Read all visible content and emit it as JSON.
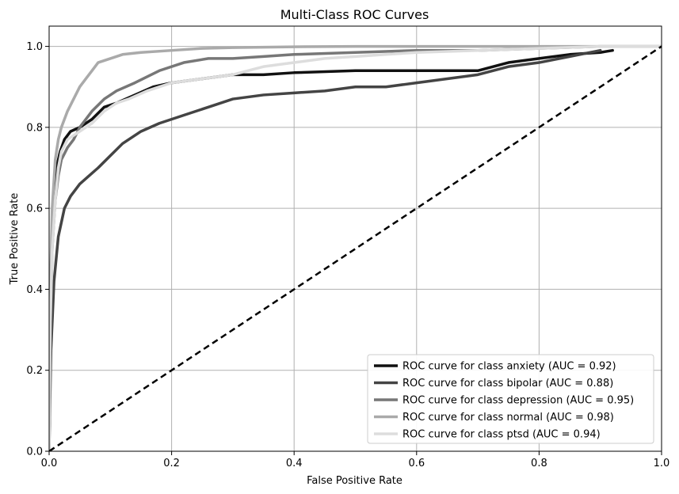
{
  "chart_data": {
    "type": "line",
    "title": "Multi-Class ROC Curves",
    "xlabel": "False Positive Rate",
    "ylabel": "True Positive Rate",
    "xlim": [
      0.0,
      1.0
    ],
    "ylim": [
      0.0,
      1.05
    ],
    "xticks": [
      "0.0",
      "0.2",
      "0.4",
      "0.6",
      "0.8",
      "1.0"
    ],
    "yticks": [
      "0.0",
      "0.2",
      "0.4",
      "0.6",
      "0.8",
      "1.0"
    ],
    "grid": true,
    "legend_position": "lower-right",
    "reference_line": {
      "label": "",
      "x": [
        0.0,
        1.0
      ],
      "y": [
        0.0,
        1.0
      ],
      "color": "#000000",
      "style": "dashed"
    },
    "series": [
      {
        "name": "ROC curve for class anxiety (AUC = 0.92)",
        "color": "#111111",
        "x": [
          0.0,
          0.002,
          0.005,
          0.008,
          0.012,
          0.018,
          0.025,
          0.035,
          0.05,
          0.07,
          0.09,
          0.11,
          0.14,
          0.17,
          0.2,
          0.25,
          0.3,
          0.35,
          0.4,
          0.5,
          0.6,
          0.7,
          0.75,
          0.8,
          0.85,
          0.9,
          0.92
        ],
        "y": [
          0.0,
          0.35,
          0.52,
          0.62,
          0.7,
          0.74,
          0.77,
          0.79,
          0.8,
          0.82,
          0.85,
          0.86,
          0.88,
          0.9,
          0.91,
          0.92,
          0.93,
          0.93,
          0.935,
          0.94,
          0.94,
          0.94,
          0.96,
          0.97,
          0.98,
          0.985,
          0.99
        ]
      },
      {
        "name": "ROC curve for class bipolar (AUC = 0.88)",
        "color": "#444444",
        "x": [
          0.0,
          0.003,
          0.008,
          0.015,
          0.025,
          0.035,
          0.05,
          0.065,
          0.08,
          0.1,
          0.12,
          0.15,
          0.18,
          0.22,
          0.26,
          0.3,
          0.35,
          0.4,
          0.45,
          0.5,
          0.55,
          0.6,
          0.65,
          0.7,
          0.75,
          0.8,
          0.85,
          0.9
        ],
        "y": [
          0.0,
          0.25,
          0.42,
          0.53,
          0.6,
          0.63,
          0.66,
          0.68,
          0.7,
          0.73,
          0.76,
          0.79,
          0.81,
          0.83,
          0.85,
          0.87,
          0.88,
          0.885,
          0.89,
          0.9,
          0.9,
          0.91,
          0.92,
          0.93,
          0.95,
          0.96,
          0.975,
          0.99
        ]
      },
      {
        "name": "ROC curve for class depression (AUC = 0.95)",
        "color": "#777777",
        "x": [
          0.0,
          0.002,
          0.005,
          0.01,
          0.015,
          0.02,
          0.03,
          0.04,
          0.05,
          0.07,
          0.09,
          0.11,
          0.14,
          0.18,
          0.22,
          0.26,
          0.3,
          0.35,
          0.4,
          0.5,
          0.6,
          0.7,
          0.8,
          0.9,
          1.0
        ],
        "y": [
          0.0,
          0.3,
          0.5,
          0.62,
          0.68,
          0.72,
          0.75,
          0.77,
          0.8,
          0.84,
          0.87,
          0.89,
          0.91,
          0.94,
          0.96,
          0.97,
          0.97,
          0.975,
          0.98,
          0.985,
          0.99,
          0.99,
          0.995,
          1.0,
          1.0
        ]
      },
      {
        "name": "ROC curve for class normal (AUC = 0.98)",
        "color": "#aaaaaa",
        "x": [
          0.0,
          0.002,
          0.005,
          0.01,
          0.015,
          0.02,
          0.03,
          0.04,
          0.05,
          0.06,
          0.07,
          0.08,
          0.1,
          0.12,
          0.15,
          0.2,
          0.25,
          0.3,
          0.4,
          0.5,
          0.6,
          0.8,
          1.0
        ],
        "y": [
          0.0,
          0.4,
          0.6,
          0.72,
          0.77,
          0.8,
          0.84,
          0.87,
          0.9,
          0.92,
          0.94,
          0.96,
          0.97,
          0.98,
          0.985,
          0.99,
          0.995,
          0.997,
          0.999,
          1.0,
          1.0,
          1.0,
          1.0
        ]
      },
      {
        "name": "ROC curve for class ptsd (AUC = 0.94)",
        "color": "#dddddd",
        "x": [
          0.0,
          0.002,
          0.005,
          0.01,
          0.015,
          0.02,
          0.03,
          0.05,
          0.07,
          0.09,
          0.11,
          0.13,
          0.16,
          0.2,
          0.25,
          0.3,
          0.35,
          0.4,
          0.45,
          0.5,
          0.55,
          0.6,
          0.7,
          0.8,
          0.9,
          1.0
        ],
        "y": [
          0.0,
          0.32,
          0.5,
          0.62,
          0.7,
          0.74,
          0.77,
          0.79,
          0.81,
          0.84,
          0.86,
          0.87,
          0.89,
          0.91,
          0.92,
          0.93,
          0.95,
          0.96,
          0.97,
          0.975,
          0.98,
          0.985,
          0.99,
          0.995,
          1.0,
          1.0
        ]
      }
    ]
  }
}
